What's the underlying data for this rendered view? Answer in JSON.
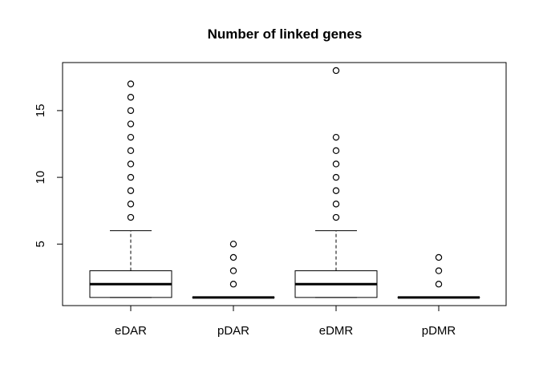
{
  "chart_data": {
    "type": "boxplot",
    "title": "Number of linked genes",
    "xlabel": "",
    "ylabel": "",
    "categories": [
      "eDAR",
      "pDAR",
      "eDMR",
      "pDMR"
    ],
    "ylim": [
      0,
      18
    ],
    "yticks": [
      5,
      10,
      15
    ],
    "grid": false,
    "legend": "none",
    "boxes": [
      {
        "label": "eDAR",
        "min": 1,
        "q1": 1,
        "median": 2,
        "q3": 3,
        "whisker_high": 6,
        "outliers": [
          7,
          8,
          9,
          10,
          11,
          12,
          13,
          14,
          15,
          16,
          17
        ]
      },
      {
        "label": "pDAR",
        "min": 1,
        "q1": 1,
        "median": 1,
        "q3": 1,
        "whisker_high": 1,
        "outliers": [
          2,
          3,
          4,
          5
        ]
      },
      {
        "label": "eDMR",
        "min": 1,
        "q1": 1,
        "median": 2,
        "q3": 3,
        "whisker_high": 6,
        "outliers": [
          7,
          8,
          9,
          10,
          11,
          12,
          13,
          18
        ]
      },
      {
        "label": "pDMR",
        "min": 1,
        "q1": 1,
        "median": 1,
        "q3": 1,
        "whisker_high": 1,
        "outliers": [
          2,
          3,
          4
        ]
      }
    ]
  }
}
